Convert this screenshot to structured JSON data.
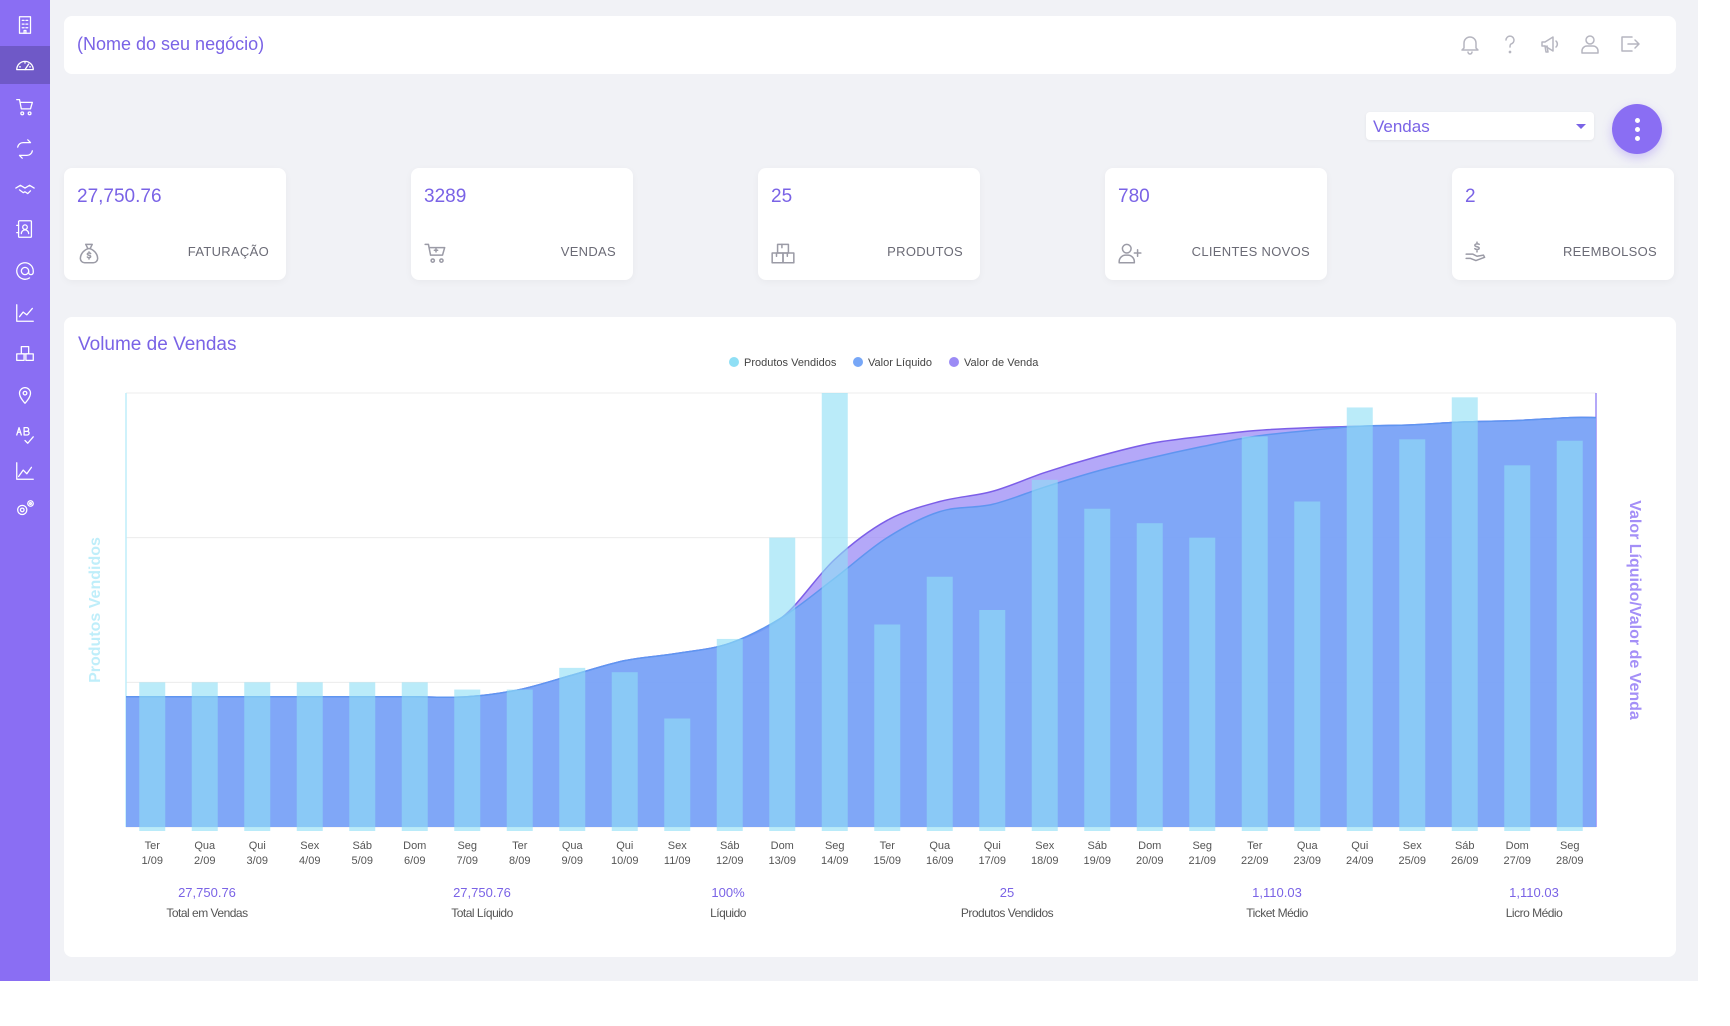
{
  "header": {
    "business_name": "(Nome do seu negócio)",
    "icons": [
      "bell-icon",
      "help-icon",
      "megaphone-icon",
      "user-icon",
      "logout-icon"
    ]
  },
  "sidebar": {
    "accent": "#8a6ef3",
    "items": [
      {
        "icon": "building-icon",
        "active": false
      },
      {
        "icon": "dashboard-icon",
        "active": true
      },
      {
        "icon": "cart-icon",
        "active": false
      },
      {
        "icon": "exchange-icon",
        "active": false
      },
      {
        "icon": "handshake-icon",
        "active": false
      },
      {
        "icon": "contacts-icon",
        "active": false
      },
      {
        "icon": "at-icon",
        "active": false
      },
      {
        "icon": "line-chart-icon",
        "active": false
      },
      {
        "icon": "boxes-icon",
        "active": false
      },
      {
        "icon": "location-icon",
        "active": false
      },
      {
        "icon": "ab-test-icon",
        "active": false
      },
      {
        "icon": "area-chart-icon",
        "active": false
      },
      {
        "icon": "settings-icon",
        "active": false
      }
    ]
  },
  "filter": {
    "selected": "Vendas"
  },
  "cards": [
    {
      "value": "27,750.76",
      "label": "FATURAÇÃO",
      "icon": "money-bag-icon"
    },
    {
      "value": "3289",
      "label": "VENDAS",
      "icon": "cart-icon"
    },
    {
      "value": "25",
      "label": "PRODUTOS",
      "icon": "boxes-icon"
    },
    {
      "value": "780",
      "label": "CLIENTES NOVOS",
      "icon": "add-user-icon"
    },
    {
      "value": "2",
      "label": "REEMBOLSOS",
      "icon": "refund-icon"
    }
  ],
  "panel": {
    "title": "Volume de Vendas"
  },
  "chart_data": {
    "type": "bar",
    "title": "",
    "ylabel": "Produtos Vendidos",
    "y2label": "Valor Líquido/Valor de Venda",
    "legend_position": "top-center",
    "grid": true,
    "colors": {
      "Produtos Vendidos": "#8fdff5",
      "Valor Líquido": "#77a7f7",
      "Valor de Venda": "#9b8bf5"
    },
    "categories": [
      {
        "day": "Ter",
        "date": "1/09"
      },
      {
        "day": "Qua",
        "date": "2/09"
      },
      {
        "day": "Qui",
        "date": "3/09"
      },
      {
        "day": "Sex",
        "date": "4/09"
      },
      {
        "day": "Sáb",
        "date": "5/09"
      },
      {
        "day": "Dom",
        "date": "6/09"
      },
      {
        "day": "Seg",
        "date": "7/09"
      },
      {
        "day": "Ter",
        "date": "8/09"
      },
      {
        "day": "Qua",
        "date": "9/09"
      },
      {
        "day": "Qui",
        "date": "10/09"
      },
      {
        "day": "Sex",
        "date": "11/09"
      },
      {
        "day": "Sáb",
        "date": "12/09"
      },
      {
        "day": "Dom",
        "date": "13/09"
      },
      {
        "day": "Seg",
        "date": "14/09"
      },
      {
        "day": "Ter",
        "date": "15/09"
      },
      {
        "day": "Qua",
        "date": "16/09"
      },
      {
        "day": "Qui",
        "date": "17/09"
      },
      {
        "day": "Sex",
        "date": "18/09"
      },
      {
        "day": "Sáb",
        "date": "19/09"
      },
      {
        "day": "Dom",
        "date": "20/09"
      },
      {
        "day": "Seg",
        "date": "21/09"
      },
      {
        "day": "Ter",
        "date": "22/09"
      },
      {
        "day": "Qua",
        "date": "23/09"
      },
      {
        "day": "Qui",
        "date": "24/09"
      },
      {
        "day": "Sex",
        "date": "25/09"
      },
      {
        "day": "Sáb",
        "date": "26/09"
      },
      {
        "day": "Dom",
        "date": "27/09"
      },
      {
        "day": "Seg",
        "date": "28/09"
      }
    ],
    "series": [
      {
        "name": "Produtos Vendidos",
        "kind": "bar",
        "values": [
          1,
          1,
          1,
          1,
          1,
          1,
          0.95,
          0.95,
          1.1,
          1.07,
          0.75,
          1.3,
          2,
          3,
          1.4,
          1.73,
          1.5,
          2.4,
          2.2,
          2.1,
          2,
          2.7,
          2.25,
          2.9,
          2.68,
          2.97,
          2.5,
          2.67
        ]
      },
      {
        "name": "Valor Líquido",
        "kind": "area",
        "values": [
          0.9,
          0.9,
          0.9,
          0.9,
          0.9,
          0.9,
          0.9,
          0.95,
          1.05,
          1.15,
          1.2,
          1.27,
          1.45,
          1.72,
          2.0,
          2.18,
          2.23,
          2.35,
          2.46,
          2.55,
          2.63,
          2.7,
          2.74,
          2.77,
          2.78,
          2.8,
          2.81,
          2.83
        ]
      },
      {
        "name": "Valor de Venda",
        "kind": "area",
        "values": [
          0.9,
          0.9,
          0.9,
          0.9,
          0.9,
          0.9,
          0.9,
          0.95,
          1.05,
          1.15,
          1.2,
          1.27,
          1.45,
          1.85,
          2.12,
          2.25,
          2.32,
          2.45,
          2.56,
          2.65,
          2.7,
          2.74,
          2.76,
          2.77,
          2.78,
          2.8,
          2.81,
          2.83
        ]
      }
    ],
    "ylim": [
      0,
      3
    ]
  },
  "stats": [
    {
      "value": "27,750.76",
      "label": "Total em Vendas"
    },
    {
      "value": "27,750.76",
      "label": "Total Líquido"
    },
    {
      "value": "100%",
      "label": "Líquido"
    },
    {
      "value": "25",
      "label": "Produtos Vendidos"
    },
    {
      "value": "1,110.03",
      "label": "Ticket Médio"
    },
    {
      "value": "1,110.03",
      "label": "Licro Médio"
    }
  ]
}
